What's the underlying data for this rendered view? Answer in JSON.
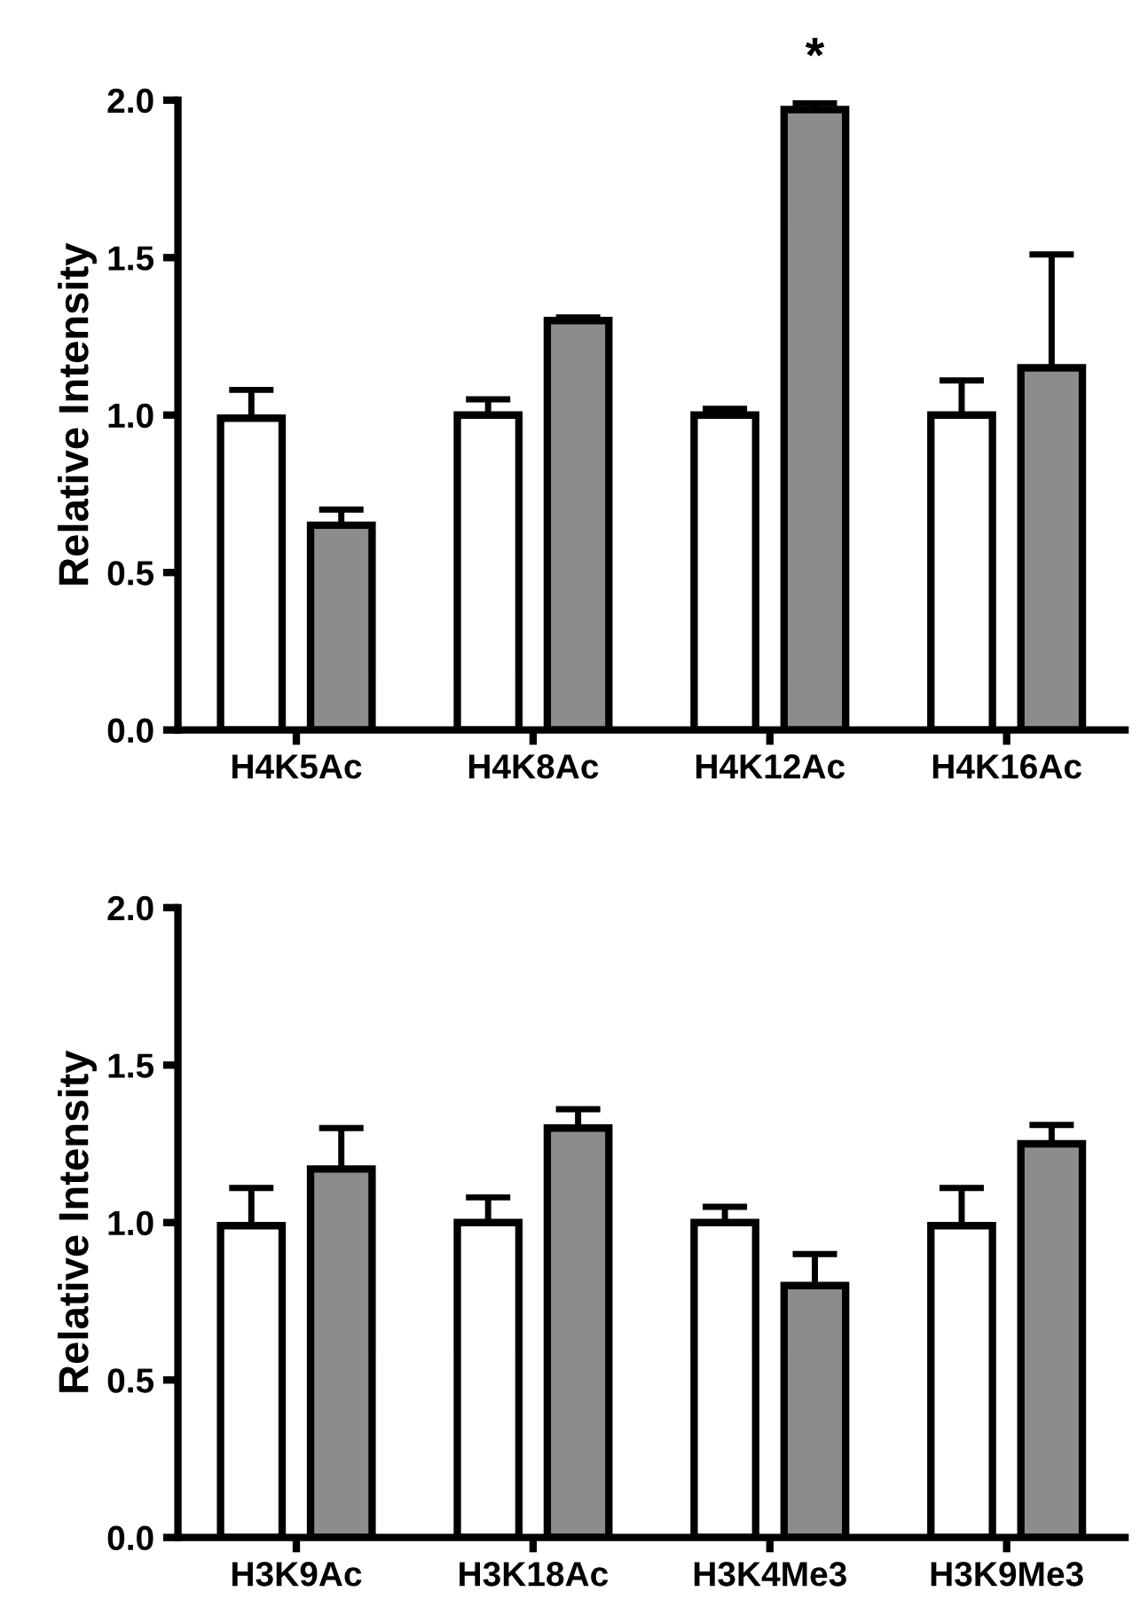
{
  "chart_data": [
    {
      "type": "bar",
      "ylabel": "Relative Intensity",
      "categories": [
        "H4K5Ac",
        "H4K8Ac",
        "H4K12Ac",
        "H4K16Ac"
      ],
      "series": [
        {
          "color": "#ffffff",
          "values": [
            0.99,
            1.0,
            1.0,
            1.0
          ],
          "errors": [
            [
              0.99,
              1.08
            ],
            [
              1.0,
              1.05
            ],
            [
              1.0,
              1.02
            ],
            [
              1.0,
              1.11
            ]
          ]
        },
        {
          "color": "#8c8c8c",
          "values": [
            0.65,
            1.3,
            1.97,
            1.15
          ],
          "errors": [
            [
              0.65,
              0.7
            ],
            [
              1.3,
              1.31
            ],
            [
              1.97,
              1.99
            ],
            [
              1.15,
              1.51
            ]
          ]
        }
      ],
      "annotations": [
        "*"
      ],
      "ylim": [
        0,
        2.0
      ],
      "yticks": [
        {
          "value": 0,
          "label": "0.0"
        },
        {
          "value": 0.5,
          "label": "0.5"
        },
        {
          "value": 1,
          "label": "1.0"
        },
        {
          "value": 1.5,
          "label": "1.5"
        },
        {
          "value": 2,
          "label": "2.0"
        }
      ]
    },
    {
      "type": "bar",
      "ylabel": "Relative Intensity",
      "categories": [
        "H3K9Ac",
        "H3K18Ac",
        "H3K4Me3",
        "H3K9Me3"
      ],
      "series": [
        {
          "color": "#ffffff",
          "values": [
            0.99,
            1.0,
            1.0,
            0.99
          ],
          "errors": [
            [
              0.99,
              1.11
            ],
            [
              1.0,
              1.08
            ],
            [
              1.0,
              1.05
            ],
            [
              0.99,
              1.11
            ]
          ]
        },
        {
          "color": "#8c8c8c",
          "values": [
            1.17,
            1.3,
            0.8,
            1.25
          ],
          "errors": [
            [
              1.17,
              1.3
            ],
            [
              1.3,
              1.36
            ],
            [
              0.8,
              0.9
            ],
            [
              1.25,
              1.31
            ]
          ]
        }
      ],
      "ylim": [
        0,
        2.0
      ],
      "yticks": [
        {
          "value": 0,
          "label": "0.0"
        },
        {
          "value": 0.5,
          "label": "0.5"
        },
        {
          "value": 1,
          "label": "1.0"
        },
        {
          "value": 1.5,
          "label": "1.5"
        },
        {
          "value": 2,
          "label": "2.0"
        }
      ]
    }
  ]
}
